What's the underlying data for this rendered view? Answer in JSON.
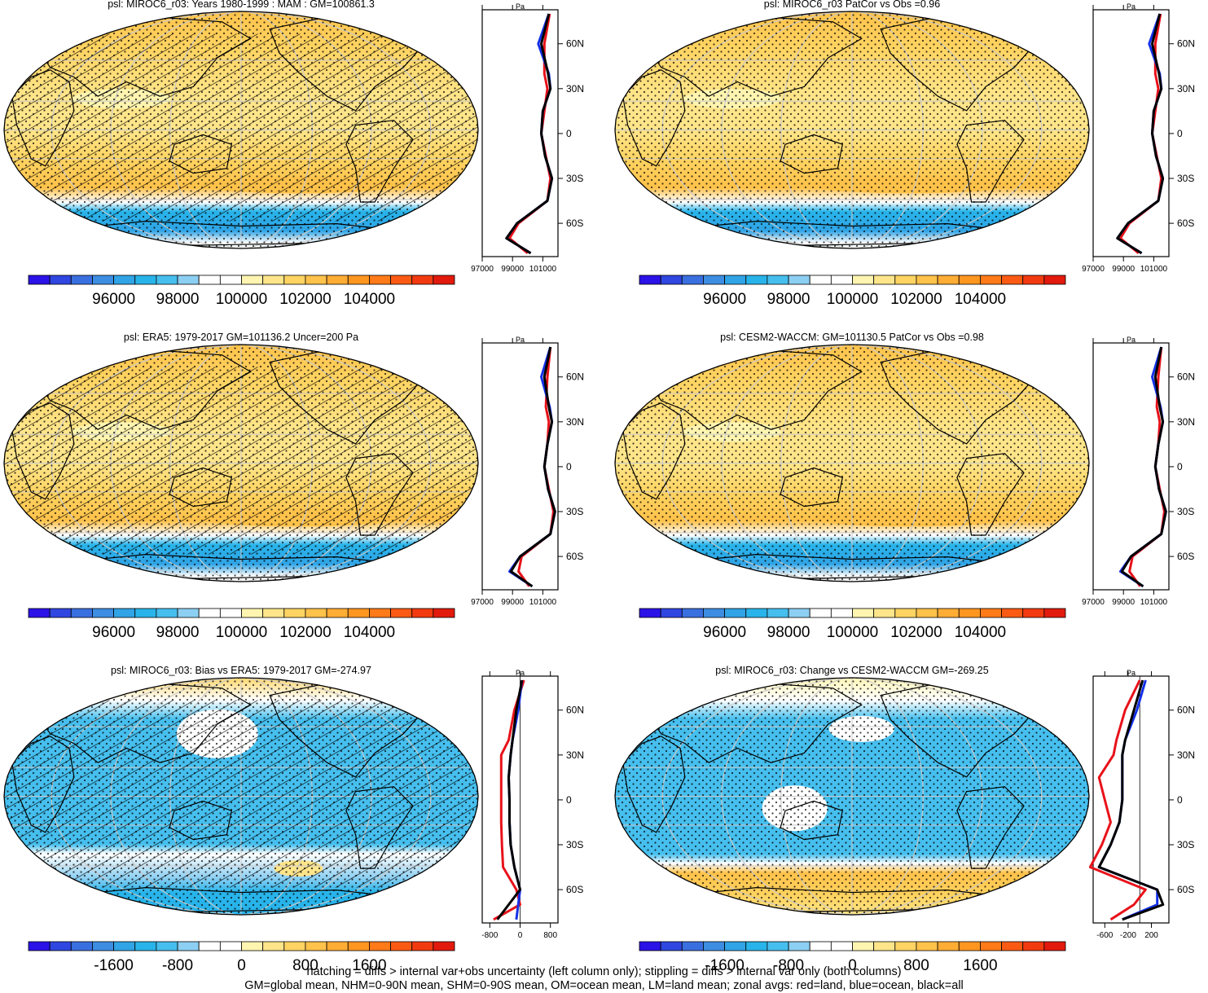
{
  "colors": {
    "palette": [
      "#2b13e8",
      "#2f46e0",
      "#3a6fe0",
      "#3d8ee2",
      "#30a4e6",
      "#28b4ea",
      "#46bfee",
      "#8ccff2",
      "#ffffff",
      "#ffffff",
      "#fff5b0",
      "#ffe58a",
      "#ffd462",
      "#ffc24a",
      "#ffad34",
      "#ff9620",
      "#ff7a18",
      "#fb5a14",
      "#f23a10",
      "#e21a0d"
    ],
    "land_line": "#e8121a",
    "ocean_line": "#1430e8",
    "all_line": "#000000"
  },
  "legend": {
    "line1": "hatching = diffs > internal var+obs uncertainty (left column only); stippling = diffs > internal var only (both columns)",
    "line2": "GM=global mean, NHM=0-90N mean, SHM=0-90S mean, OM=ocean mean, LM=land mean; zonal avgs: red=land, blue=ocean, black=all"
  },
  "zonal_common": {
    "units": "Pa",
    "lat_ticks": [
      "60N",
      "30N",
      "0",
      "30S",
      "60S"
    ]
  },
  "panels": [
    {
      "id": "p1",
      "title": "psl: MIROC6_r03: Years 1980-1999 : MAM : GM=100861.3",
      "style": "hatch",
      "zonal_ticks": [
        "97000",
        "99000",
        "101000"
      ],
      "cbar_labels": [
        "96000",
        "98000",
        "100000",
        "102000",
        "104000"
      ]
    },
    {
      "id": "p2",
      "title": "psl: MIROC6_r03 PatCor vs Obs =0.96",
      "style": "stipple",
      "zonal_ticks": [
        "97000",
        "99000",
        "101000"
      ],
      "cbar_labels": [
        "96000",
        "98000",
        "100000",
        "102000",
        "104000"
      ]
    },
    {
      "id": "p3",
      "title": "psl: ERA5: 1979-2017 GM=101136.2 Uncer=200 Pa",
      "style": "hatch",
      "zonal_ticks": [
        "97000",
        "99000",
        "101000"
      ],
      "cbar_labels": [
        "96000",
        "98000",
        "100000",
        "102000",
        "104000"
      ]
    },
    {
      "id": "p4",
      "title": "psl: CESM2-WACCM: GM=101130.5 PatCor vs Obs =0.98",
      "style": "stipple",
      "zonal_ticks": [
        "97000",
        "99000",
        "101000"
      ],
      "cbar_labels": [
        "96000",
        "98000",
        "100000",
        "102000",
        "104000"
      ]
    },
    {
      "id": "p5",
      "title": "psl: MIROC6_r03: Bias vs ERA5: 1979-2017 GM=-274.97",
      "style": "bias",
      "zonal_ticks": [
        "-800",
        "0",
        "800"
      ],
      "cbar_labels": [
        "-1600",
        "-800",
        "0",
        "800",
        "1600"
      ]
    },
    {
      "id": "p6",
      "title": "psl: MIROC6_r03: Change vs CESM2-WACCM GM=-269.25",
      "style": "change",
      "zonal_ticks": [
        "-600",
        "-200",
        "200"
      ],
      "cbar_labels": [
        "-1600",
        "-800",
        "0",
        "800",
        "1600"
      ]
    }
  ],
  "chart_data": [
    {
      "type": "heatmap",
      "title": "psl: MIROC6_r03: Years 1980-1999 : MAM : GM=100861.3",
      "colorbar": {
        "labels": [
          96000,
          98000,
          100000,
          102000,
          104000
        ]
      },
      "zonal_mean": {
        "units": "Pa",
        "lat": [
          80,
          60,
          40,
          30,
          15,
          0,
          -15,
          -30,
          -45,
          -60,
          -70,
          -80
        ],
        "all": [
          101400,
          100900,
          101350,
          101500,
          101000,
          100900,
          101150,
          101600,
          101300,
          99300,
          98600,
          100200
        ],
        "land": [
          101450,
          101100,
          101100,
          101300,
          101100,
          100900,
          101200,
          101500,
          101300,
          99400,
          98800,
          100000
        ],
        "ocean": [
          101400,
          100700,
          101400,
          101500,
          101000,
          100900,
          101150,
          101600,
          101300,
          99300,
          98600,
          100200
        ]
      }
    },
    {
      "type": "heatmap",
      "title": "psl: MIROC6_r03 PatCor vs Obs =0.96",
      "colorbar": {
        "labels": [
          96000,
          98000,
          100000,
          102000,
          104000
        ]
      },
      "zonal_mean": {
        "units": "Pa",
        "lat": [
          80,
          60,
          40,
          30,
          15,
          0,
          -15,
          -30,
          -45,
          -60,
          -70,
          -80
        ],
        "all": [
          101400,
          100900,
          101350,
          101500,
          101000,
          100900,
          101150,
          101600,
          101300,
          99300,
          98600,
          100200
        ],
        "land": [
          101450,
          101100,
          101100,
          101300,
          101100,
          100900,
          101200,
          101500,
          101300,
          99400,
          98800,
          100000
        ],
        "ocean": [
          101400,
          100700,
          101400,
          101500,
          101000,
          100900,
          101150,
          101600,
          101300,
          99300,
          98600,
          100200
        ]
      }
    },
    {
      "type": "heatmap",
      "title": "psl: ERA5: 1979-2017 GM=101136.2 Uncer=200 Pa",
      "colorbar": {
        "labels": [
          96000,
          98000,
          100000,
          102000,
          104000
        ]
      },
      "zonal_mean": {
        "units": "Pa",
        "lat": [
          80,
          60,
          40,
          30,
          15,
          0,
          -15,
          -30,
          -45,
          -60,
          -70,
          -80
        ],
        "all": [
          101500,
          101100,
          101400,
          101600,
          101300,
          101100,
          101350,
          101800,
          101500,
          99500,
          98900,
          100300
        ],
        "land": [
          101500,
          101300,
          101200,
          101400,
          101300,
          101100,
          101400,
          101700,
          101500,
          99600,
          99400,
          100100
        ],
        "ocean": [
          101500,
          100900,
          101450,
          101600,
          101300,
          101100,
          101350,
          101800,
          101500,
          99500,
          98800,
          100300
        ]
      }
    },
    {
      "type": "heatmap",
      "title": "psl: CESM2-WACCM: GM=101130.5 PatCor vs Obs =0.98",
      "colorbar": {
        "labels": [
          96000,
          98000,
          100000,
          102000,
          104000
        ]
      },
      "zonal_mean": {
        "units": "Pa",
        "lat": [
          80,
          60,
          40,
          30,
          15,
          0,
          -15,
          -30,
          -45,
          -60,
          -70,
          -80
        ],
        "all": [
          101500,
          101100,
          101400,
          101600,
          101300,
          101100,
          101350,
          101800,
          101500,
          99500,
          98900,
          100300
        ],
        "land": [
          101500,
          101300,
          101200,
          101400,
          101300,
          101100,
          101400,
          101700,
          101500,
          99600,
          99400,
          100100
        ],
        "ocean": [
          101500,
          100900,
          101450,
          101600,
          101300,
          101100,
          101350,
          101800,
          101500,
          99500,
          98800,
          100300
        ]
      }
    },
    {
      "type": "heatmap",
      "title": "psl: MIROC6_r03: Bias vs ERA5: 1979-2017 GM=-274.97",
      "colorbar": {
        "labels": [
          -1600,
          -800,
          0,
          800,
          1600
        ]
      },
      "zonal_mean": {
        "units": "Pa",
        "lat": [
          80,
          60,
          40,
          30,
          15,
          0,
          -15,
          -30,
          -45,
          -60,
          -70,
          -80
        ],
        "all": [
          50,
          -100,
          -200,
          -250,
          -300,
          -280,
          -280,
          -250,
          -150,
          0,
          -300,
          -600
        ],
        "land": [
          100,
          -150,
          -300,
          -500,
          -500,
          -500,
          -500,
          -480,
          -450,
          -100,
          0,
          -700
        ],
        "ocean": [
          50,
          -50,
          -200,
          -250,
          -300,
          -280,
          -280,
          -250,
          -150,
          0,
          -50,
          -100
        ]
      }
    },
    {
      "type": "heatmap",
      "title": "psl: MIROC6_r03: Change vs CESM2-WACCM GM=-269.25",
      "colorbar": {
        "labels": [
          -1600,
          -800,
          0,
          800,
          1600
        ]
      },
      "zonal_mean": {
        "units": "Pa",
        "lat": [
          80,
          60,
          40,
          30,
          15,
          0,
          -15,
          -30,
          -45,
          -60,
          -70,
          -80
        ],
        "all": [
          50,
          -100,
          -250,
          -300,
          -300,
          -300,
          -350,
          -500,
          -700,
          300,
          400,
          -300
        ],
        "land": [
          0,
          -250,
          -400,
          -450,
          -700,
          -600,
          -500,
          -650,
          -850,
          100,
          -100,
          -500
        ],
        "ocean": [
          100,
          -50,
          -250,
          -300,
          -300,
          -300,
          -350,
          -500,
          -700,
          300,
          300,
          -300
        ]
      }
    }
  ]
}
